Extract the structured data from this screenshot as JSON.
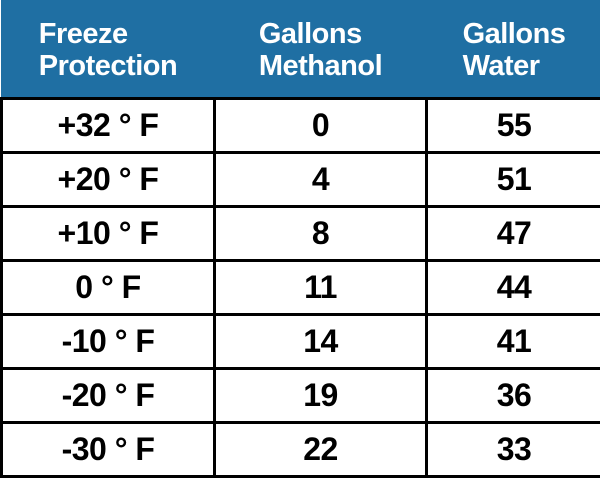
{
  "table": {
    "headers": [
      "Freeze\nProtection",
      "Gallons\nMethanol",
      "Gallons\nWater"
    ],
    "rows": [
      [
        "+32 ° F",
        0,
        55
      ],
      [
        "+20 ° F",
        4,
        51
      ],
      [
        "+10 ° F",
        8,
        47
      ],
      [
        "0 ° F",
        11,
        44
      ],
      [
        "-10 ° F",
        14,
        41
      ],
      [
        "-20 ° F",
        19,
        36
      ],
      [
        "-30 ° F",
        22,
        33
      ]
    ]
  }
}
